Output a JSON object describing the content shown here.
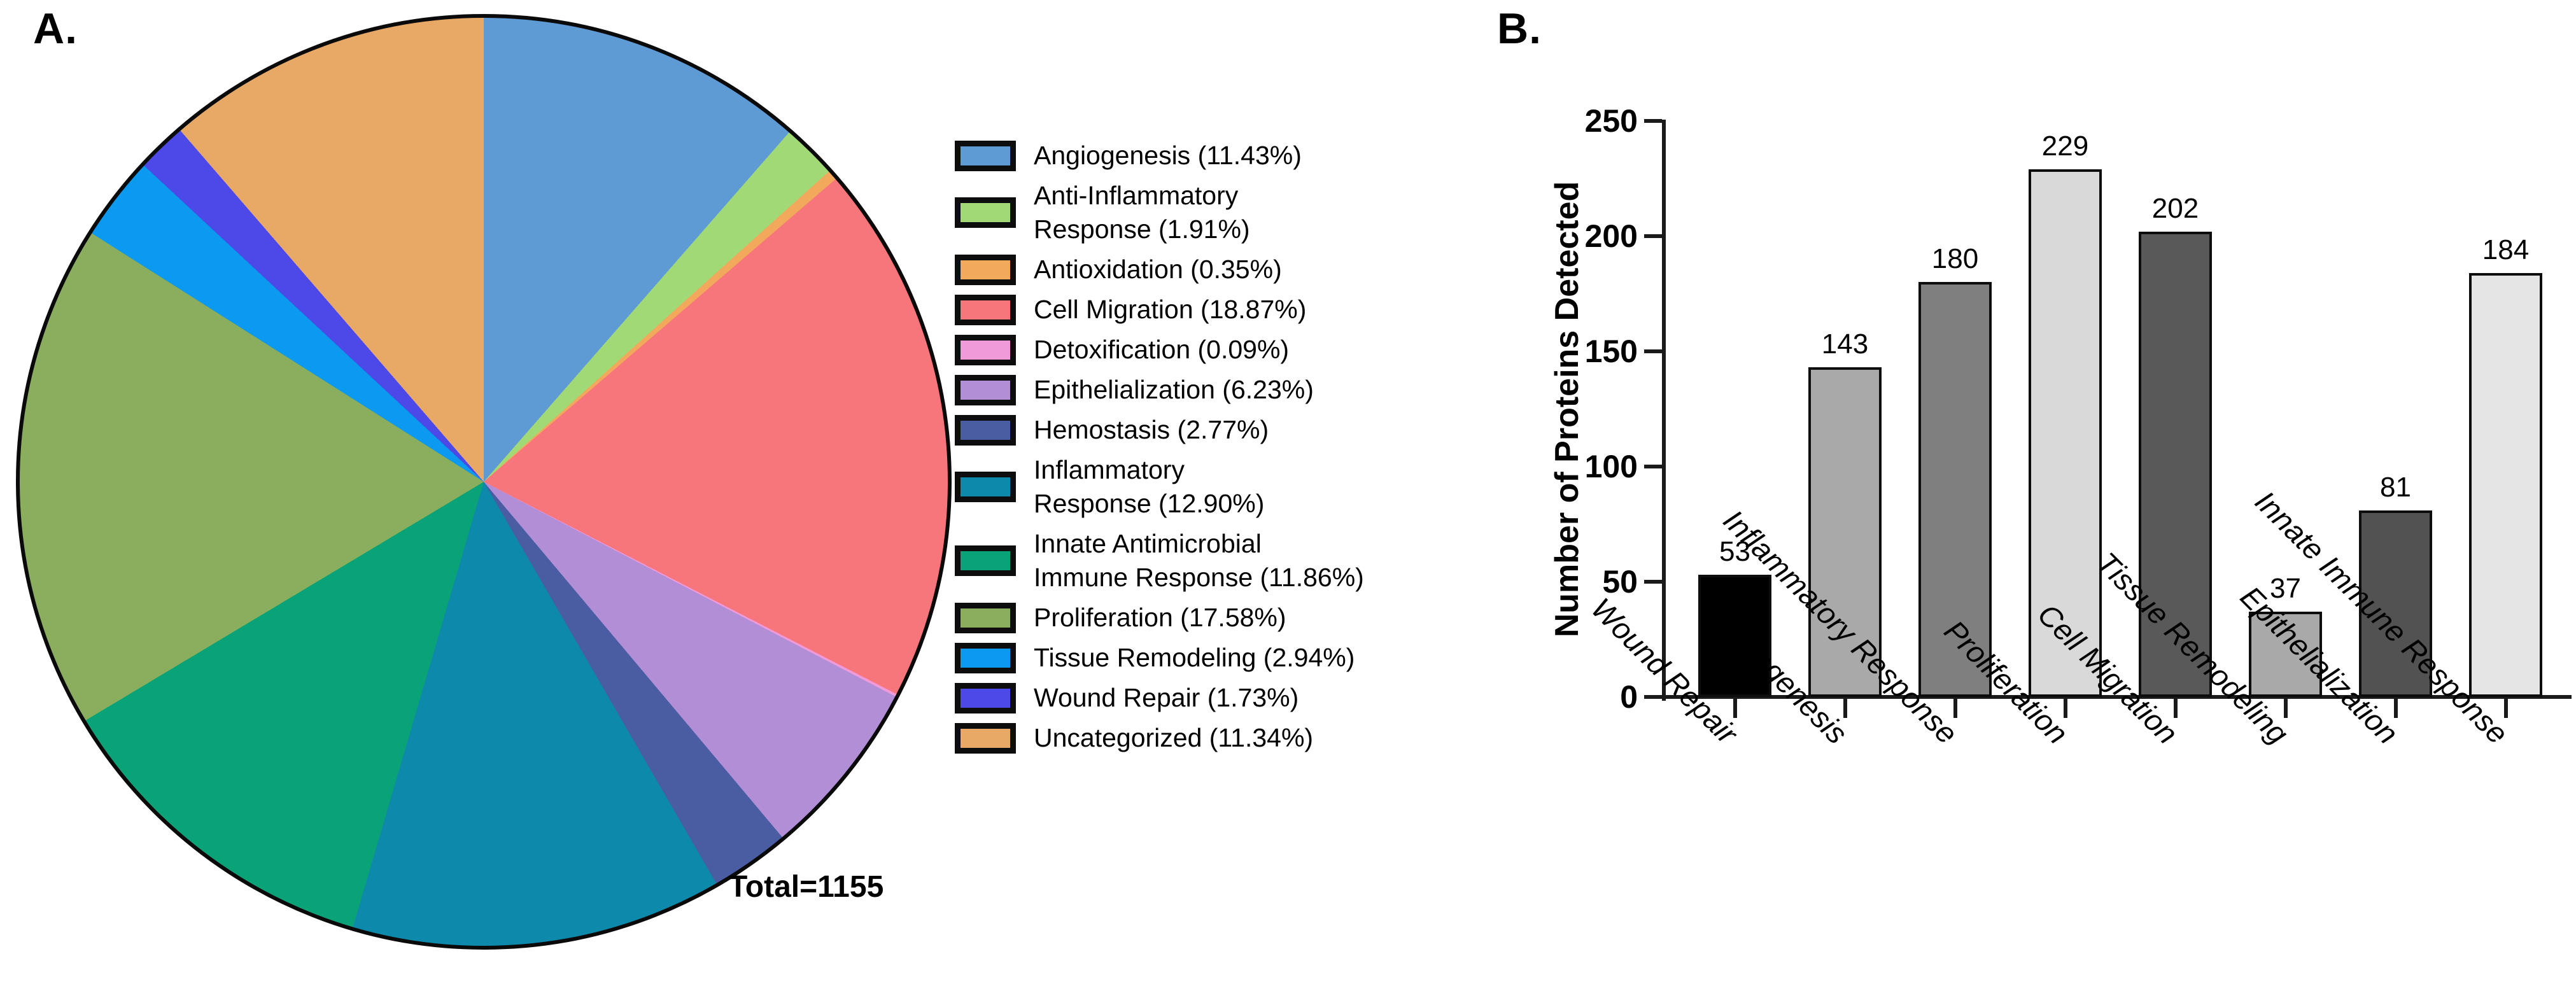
{
  "panels": {
    "a_label": "A.",
    "b_label": "B."
  },
  "chart_data": [
    {
      "type": "pie",
      "title": "",
      "total_label": "Total=1155",
      "total": 1155,
      "legend_position": "right",
      "start_angle_deg": 0,
      "direction": "clockwise",
      "slices": [
        {
          "label": "Angiogenesis",
          "pct": 11.43,
          "color": "#5e9ad3",
          "legend_lines": [
            "Angiogenesis (11.43%)"
          ]
        },
        {
          "label": "Anti-Inflammatory Response",
          "pct": 1.91,
          "color": "#a2d977",
          "legend_lines": [
            "Anti-Inflammatory",
            "Response (1.91%)"
          ]
        },
        {
          "label": "Antioxidation",
          "pct": 0.35,
          "color": "#f2a95c",
          "legend_lines": [
            "Antioxidation (0.35%)"
          ]
        },
        {
          "label": "Cell Migration",
          "pct": 18.87,
          "color": "#f7767b",
          "legend_lines": [
            "Cell Migration (18.87%)"
          ]
        },
        {
          "label": "Detoxification",
          "pct": 0.09,
          "color": "#f19ada",
          "legend_lines": [
            "Detoxification (0.09%)"
          ]
        },
        {
          "label": "Epithelialization",
          "pct": 6.23,
          "color": "#b18ed6",
          "legend_lines": [
            "Epithelialization (6.23%)"
          ]
        },
        {
          "label": "Hemostasis",
          "pct": 2.77,
          "color": "#4b5da2",
          "legend_lines": [
            "Hemostasis (2.77%)"
          ]
        },
        {
          "label": "Inflammatory Response",
          "pct": 12.9,
          "color": "#0d8aab",
          "legend_lines": [
            "Inflammatory",
            "Response (12.90%)"
          ]
        },
        {
          "label": "Innate Antimicrobial Immune Response",
          "pct": 11.86,
          "color": "#0aa377",
          "legend_lines": [
            "Innate Antimicrobial",
            "Immune Response (11.86%)"
          ]
        },
        {
          "label": "Proliferation",
          "pct": 17.58,
          "color": "#8bad5e",
          "legend_lines": [
            "Proliferation (17.58%)"
          ]
        },
        {
          "label": "Tissue Remodeling",
          "pct": 2.94,
          "color": "#0c9af0",
          "legend_lines": [
            "Tissue Remodeling (2.94%)"
          ]
        },
        {
          "label": "Wound Repair",
          "pct": 1.73,
          "color": "#4c49e8",
          "legend_lines": [
            "Wound Repair (1.73%)"
          ]
        },
        {
          "label": "Uncategorized",
          "pct": 11.34,
          "color": "#e9a966",
          "legend_lines": [
            "Uncategorized (11.34%)"
          ]
        }
      ]
    },
    {
      "type": "bar",
      "title": "",
      "xlabel": "",
      "ylabel": "Number of Proteins Detected",
      "ylim": [
        0,
        250
      ],
      "yticks": [
        0,
        50,
        100,
        150,
        200,
        250
      ],
      "grid": false,
      "categories": [
        "Wound Repair",
        "Angiogenesis",
        "Inflammatory Response",
        "Proliferation",
        "Cell Migration",
        "Tissue Remodeling",
        "Epithelialization",
        "Innate Immune Response"
      ],
      "values": [
        53,
        143,
        180,
        229,
        202,
        37,
        81,
        184
      ],
      "bar_colors": [
        "#000000",
        "#a9a9a9",
        "#7f7f7f",
        "#d9d9d9",
        "#595959",
        "#a9a9a9",
        "#525252",
        "#e5e5e5"
      ]
    }
  ]
}
